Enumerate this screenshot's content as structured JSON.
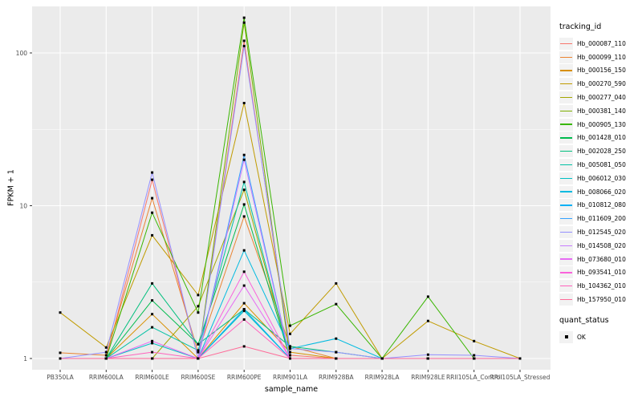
{
  "chart_data": {
    "type": "line",
    "title": "",
    "xlabel": "sample_name",
    "ylabel": "FPKM + 1",
    "y_scale": "log10",
    "ylim": [
      0.85,
      200
    ],
    "y_ticks": [
      1,
      10,
      100
    ],
    "y_minor_ticks": [
      3.1623,
      31.623
    ],
    "grid": true,
    "legend_position": "right",
    "categories": [
      "PB350LA",
      "RRIM600LA",
      "RRIM600LE",
      "RRIM600SE",
      "RRIM600PE",
      "RRIM901LA",
      "RRIM928BA",
      "RRIM928LA",
      "RRIM928LE",
      "RRII105LA_Control",
      "RRII105LA_Stressed"
    ],
    "series": [
      {
        "name": "Hb_000087_110",
        "color": "#F8766D",
        "values": [
          1.0,
          1.0,
          14.8,
          1.0,
          120,
          1.05,
          1.0,
          1.0,
          1.0,
          1.0,
          1.0
        ]
      },
      {
        "name": "Hb_000099_110",
        "color": "#EA8331",
        "values": [
          1.09,
          1.05,
          11.2,
          1.1,
          8.5,
          1.2,
          1.0,
          1.0,
          1.0,
          1.0,
          1.0
        ]
      },
      {
        "name": "Hb_000156_150",
        "color": "#D89000",
        "values": [
          1.0,
          1.0,
          1.95,
          1.0,
          2.3,
          1.1,
          1.0,
          1.0,
          1.0,
          1.0,
          1.0
        ]
      },
      {
        "name": "Hb_000270_590",
        "color": "#C09B00",
        "values": [
          2.0,
          1.18,
          6.4,
          2.6,
          47,
          1.45,
          3.1,
          1.0,
          1.76,
          1.3,
          1.0
        ]
      },
      {
        "name": "Hb_000277_040",
        "color": "#A3A500",
        "values": [
          1.0,
          1.0,
          1.0,
          2.2,
          12.7,
          1.0,
          1.0,
          1.0,
          1.0,
          1.0,
          1.0
        ]
      },
      {
        "name": "Hb_000381_140",
        "color": "#7CAE00",
        "values": [
          1.0,
          1.0,
          1.0,
          1.0,
          158,
          1.0,
          1.0,
          1.0,
          1.0,
          1.0,
          1.0
        ]
      },
      {
        "name": "Hb_000905_130",
        "color": "#39B600",
        "values": [
          1.0,
          1.0,
          9.0,
          2.0,
          170,
          1.64,
          2.27,
          1.0,
          2.54,
          1.0,
          1.0
        ]
      },
      {
        "name": "Hb_001428_010",
        "color": "#00BB4E",
        "values": [
          1.0,
          1.0,
          2.4,
          1.24,
          10.2,
          1.0,
          1.0,
          1.0,
          1.0,
          1.0,
          1.0
        ]
      },
      {
        "name": "Hb_002028_250",
        "color": "#00BF7D",
        "values": [
          1.0,
          1.0,
          3.1,
          1.24,
          2.1,
          1.2,
          1.1,
          1.0,
          1.0,
          1.0,
          1.0
        ]
      },
      {
        "name": "Hb_005081_050",
        "color": "#00C1A3",
        "values": [
          1.0,
          1.0,
          1.6,
          1.13,
          14.3,
          1.0,
          1.0,
          1.0,
          1.0,
          1.0,
          1.0
        ]
      },
      {
        "name": "Hb_006012_030",
        "color": "#00BFC4",
        "values": [
          1.0,
          1.0,
          1.26,
          1.0,
          2.05,
          1.0,
          1.0,
          1.0,
          1.0,
          1.0,
          1.0
        ]
      },
      {
        "name": "Hb_008066_020",
        "color": "#00BAE0",
        "values": [
          1.0,
          1.0,
          1.0,
          1.0,
          5.1,
          1.16,
          1.35,
          1.0,
          1.0,
          1.0,
          1.0
        ]
      },
      {
        "name": "Hb_010812_080",
        "color": "#00B0F6",
        "values": [
          1.0,
          1.0,
          1.0,
          1.0,
          2.1,
          1.0,
          1.0,
          1.0,
          1.0,
          1.0,
          1.0
        ]
      },
      {
        "name": "Hb_011609_200",
        "color": "#35A2FF",
        "values": [
          1.0,
          1.0,
          1.0,
          1.0,
          21.5,
          1.0,
          1.0,
          1.0,
          1.0,
          1.0,
          1.0
        ]
      },
      {
        "name": "Hb_012545_020",
        "color": "#9590FF",
        "values": [
          1.0,
          1.1,
          16.5,
          1.0,
          111,
          1.16,
          1.1,
          1.0,
          1.06,
          1.05,
          1.0
        ]
      },
      {
        "name": "Hb_014508_020",
        "color": "#C77CFF",
        "values": [
          1.0,
          1.0,
          1.0,
          1.0,
          20,
          1.0,
          1.0,
          1.0,
          1.0,
          1.0,
          1.0
        ]
      },
      {
        "name": "Hb_073680_010",
        "color": "#E76BF3",
        "values": [
          1.0,
          1.0,
          1.3,
          1.0,
          3.0,
          1.0,
          1.0,
          1.0,
          1.0,
          1.0,
          1.0
        ]
      },
      {
        "name": "Hb_093541_010",
        "color": "#FA62DB",
        "values": [
          1.0,
          1.0,
          1.0,
          1.0,
          3.7,
          1.0,
          1.0,
          1.0,
          1.0,
          1.0,
          1.0
        ]
      },
      {
        "name": "Hb_104362_010",
        "color": "#FF62BC",
        "values": [
          1.0,
          1.0,
          1.1,
          1.0,
          1.8,
          1.0,
          1.0,
          1.0,
          1.0,
          1.0,
          1.0
        ]
      },
      {
        "name": "Hb_157950_010",
        "color": "#FF6A98",
        "values": [
          1.0,
          1.0,
          1.0,
          1.0,
          1.2,
          1.0,
          1.0,
          1.0,
          1.0,
          1.0,
          1.0
        ]
      }
    ],
    "legend": {
      "tracking_title": "tracking_id",
      "quant_title": "quant_status",
      "quant_items": [
        {
          "label": "OK",
          "marker": "black-square"
        }
      ]
    },
    "style": {
      "panel_bg": "#EBEBEB",
      "grid_color": "#FFFFFF",
      "tick_color": "#333333",
      "tick_text_color": "#4D4D4D",
      "point_color": "#000000",
      "legend_key_bg": "#F2F2F2"
    }
  }
}
